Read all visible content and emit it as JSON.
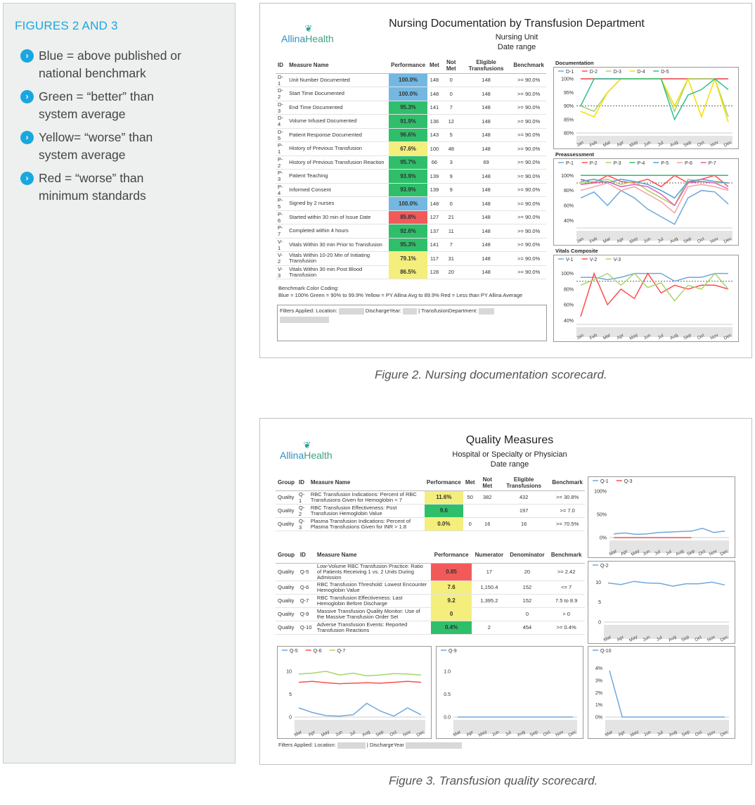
{
  "sidebar": {
    "title": "FIGURES 2 AND 3",
    "items": [
      {
        "line1": "Blue = above published or",
        "line2": "national benchmark"
      },
      {
        "line1": "Green = “better” than",
        "line2": "system average"
      },
      {
        "line1": "Yellow= “worse” than",
        "line2": "system average"
      },
      {
        "line1": "Red = “worse” than",
        "line2": "minimum standards"
      }
    ]
  },
  "colors": {
    "blue": "#74b8e2",
    "green": "#2fbf6b",
    "yellow": "#f4ee7c",
    "red": "#f25a5a",
    "accent": "#1aa7df"
  },
  "logo": {
    "name_a": "Allina",
    "name_b": "Health"
  },
  "figure2": {
    "title": "Nursing Documentation by Transfusion Department",
    "subtitle1": "Nursing Unit",
    "subtitle2": "Date range",
    "caption": "Figure 2. Nursing documentation scorecard.",
    "headers": [
      "ID",
      "Measure Name",
      "Performance",
      "Met",
      "Not Met",
      "Eligible Transfusions",
      "Benchmark"
    ],
    "rows": [
      {
        "id": "D-1",
        "name": "Unit Number Documented",
        "perf": "100.0%",
        "color": "blue",
        "met": "148",
        "notmet": "0",
        "elig": "148",
        "bench": ">= 90.0%"
      },
      {
        "id": "D-2",
        "name": "Start Time Documented",
        "perf": "100.0%",
        "color": "blue",
        "met": "148",
        "notmet": "0",
        "elig": "148",
        "bench": ">= 90.0%"
      },
      {
        "id": "D-3",
        "name": "End Time Documented",
        "perf": "95.3%",
        "color": "green",
        "met": "141",
        "notmet": "7",
        "elig": "148",
        "bench": ">= 90.0%"
      },
      {
        "id": "D-4",
        "name": "Volume Infused Documented",
        "perf": "91.9%",
        "color": "green",
        "met": "136",
        "notmet": "12",
        "elig": "148",
        "bench": ">= 90.0%"
      },
      {
        "id": "D-5",
        "name": "Patient Response Documented",
        "perf": "96.6%",
        "color": "green",
        "met": "143",
        "notmet": "5",
        "elig": "148",
        "bench": ">= 90.0%"
      },
      {
        "id": "P-1",
        "name": "History of Previous Transfusion",
        "perf": "67.6%",
        "color": "yellow",
        "met": "100",
        "notmet": "48",
        "elig": "148",
        "bench": ">= 90.0%"
      },
      {
        "id": "P-2",
        "name": "History of Previous Transfusion Reaction",
        "perf": "95.7%",
        "color": "green",
        "met": "66",
        "notmet": "3",
        "elig": "69",
        "bench": ">= 90.0%"
      },
      {
        "id": "P-3",
        "name": "Patient Teaching",
        "perf": "93.9%",
        "color": "green",
        "met": "139",
        "notmet": "9",
        "elig": "148",
        "bench": ">= 90.0%"
      },
      {
        "id": "P-4",
        "name": "Informed Consent",
        "perf": "93.9%",
        "color": "green",
        "met": "139",
        "notmet": "9",
        "elig": "148",
        "bench": ">= 90.0%"
      },
      {
        "id": "P-5",
        "name": "Signed by 2 nurses",
        "perf": "100.0%",
        "color": "blue",
        "met": "148",
        "notmet": "0",
        "elig": "148",
        "bench": ">= 90.0%"
      },
      {
        "id": "P-6",
        "name": "Started within 30 min of Issue Date",
        "perf": "85.8%",
        "color": "red",
        "met": "127",
        "notmet": "21",
        "elig": "148",
        "bench": ">= 90.0%"
      },
      {
        "id": "P-7",
        "name": "Completed within 4 hours",
        "perf": "92.6%",
        "color": "green",
        "met": "137",
        "notmet": "11",
        "elig": "148",
        "bench": ">= 90.0%"
      },
      {
        "id": "V-1",
        "name": "Vitals Within 30 min Prior to Transfusion",
        "perf": "95.3%",
        "color": "green",
        "met": "141",
        "notmet": "7",
        "elig": "148",
        "bench": ">= 90.0%"
      },
      {
        "id": "V-2",
        "name": "Vitals Within 10-20 Min of Initiating Transfusion",
        "perf": "79.1%",
        "color": "yellow",
        "met": "117",
        "notmet": "31",
        "elig": "148",
        "bench": ">= 90.0%"
      },
      {
        "id": "V-3",
        "name": "Vitals Within 30 min Post Blood Transfusion",
        "perf": "86.5%",
        "color": "yellow",
        "met": "128",
        "notmet": "20",
        "elig": "148",
        "bench": ">= 90.0%"
      }
    ],
    "legend_line1": "Benchmark Color Coding:",
    "legend_line2": "Blue = 100%   Green = 90% to 99.9%   Yellow = PY Allina Avg to 89.9%   Red = Less than PY Allina Average",
    "filters": {
      "location": "Filters Applied: Location:",
      "year": "DischargeYear:",
      "dept": "| TransfusionDepartment:"
    }
  },
  "figure3": {
    "title": "Quality Measures",
    "subtitle1": "Hospital or Specialty or Physician",
    "subtitle2": "Date range",
    "caption": "Figure 3. Transfusion quality scorecard.",
    "table1": {
      "headers": [
        "Group",
        "ID",
        "Measure Name",
        "Performance",
        "Met",
        "Not Met",
        "Eligible Transfusions",
        "Benchmark"
      ],
      "rows": [
        {
          "group": "Quality",
          "id": "Q-1",
          "name": "RBC Transfusion Indications: Percent of RBC Transfusions Given for Hemoglobin < 7",
          "perf": "11.6%",
          "color": "yellow",
          "met": "50",
          "notmet": "382",
          "elig": "432",
          "bench": ">= 30.8%"
        },
        {
          "group": "Quality",
          "id": "Q-2",
          "name": "RBC Transfusion Effectiveness: Post Transfusion Hemoglobin Value",
          "perf": "9.6",
          "color": "green",
          "met": "",
          "notmet": "",
          "elig": "197",
          "bench": ">= 7.0"
        },
        {
          "group": "Quality",
          "id": "Q-3",
          "name": "Plasma Transfusion Indications: Percent of Plasma Transfusions Given for INR > 1.8",
          "perf": "0.0%",
          "color": "yellow",
          "met": "0",
          "notmet": "16",
          "elig": "16",
          "bench": ">= 70.5%"
        }
      ]
    },
    "table2": {
      "headers": [
        "Group",
        "ID",
        "Measure Name",
        "Performance",
        "Numerator",
        "Denominator",
        "Benchmark"
      ],
      "rows": [
        {
          "group": "Quality",
          "id": "Q-5",
          "name": "Low-Volume RBC Transfusion Practice: Ratio of Patients Receiving 1 vs. 2 Units During Admission",
          "perf": "0.85",
          "color": "red",
          "num": "17",
          "den": "20",
          "bench": ">= 2.42"
        },
        {
          "group": "Quality",
          "id": "Q-6",
          "name": "RBC Transfusion Threshold: Lowest Encounter Hemoglobin Value",
          "perf": "7.6",
          "color": "yellow",
          "num": "1,150.4",
          "den": "152",
          "bench": "<= 7"
        },
        {
          "group": "Quality",
          "id": "Q-7",
          "name": "RBC Transfusion Effectiveness: Last Hemoglobin Before Discharge",
          "perf": "9.2",
          "color": "yellow",
          "num": "1,395.2",
          "den": "152",
          "bench": "7.5 to 8.9"
        },
        {
          "group": "Quality",
          "id": "Q-9",
          "name": "Massive Transfusion Quality Monitor: Use of the Massive Transfusion Order Set",
          "perf": "0",
          "color": "yellow",
          "num": "",
          "den": "0",
          "bench": "> 0"
        },
        {
          "group": "Quality",
          "id": "Q-10",
          "name": "Adverse Transfusion Events: Reported Transfusion Reactions",
          "perf": "0.4%",
          "color": "green",
          "num": "2",
          "den": "454",
          "bench": ">= 0.4%"
        }
      ]
    },
    "filters": {
      "location": "Filters Applied: Location:",
      "year": "| DischargeYear"
    }
  },
  "chart_data": [
    {
      "type": "line",
      "title": "Documentation",
      "x": [
        "Jan",
        "Feb",
        "Mar",
        "Apr",
        "May",
        "Jun",
        "Jul",
        "Aug",
        "Sep",
        "Oct",
        "Nov",
        "Dec"
      ],
      "yticks": [
        "80%",
        "85%",
        "90%",
        "95%",
        "100%"
      ],
      "ylim": [
        80,
        100
      ],
      "benchmark": 90,
      "series": [
        {
          "name": "D-1",
          "color": "#6fa8dc",
          "values": [
            100,
            100,
            100,
            100,
            100,
            100,
            100,
            100,
            100,
            100,
            100,
            100
          ]
        },
        {
          "name": "D-2",
          "color": "#ff4d4d",
          "values": [
            100,
            100,
            100,
            100,
            100,
            100,
            100,
            100,
            100,
            100,
            100,
            100
          ]
        },
        {
          "name": "D-3",
          "color": "#a9d46a",
          "values": [
            90,
            88,
            95,
            100,
            100,
            100,
            100,
            88,
            100,
            100,
            100,
            86
          ]
        },
        {
          "name": "D-4",
          "color": "#f2e000",
          "values": [
            88,
            86,
            95,
            100,
            100,
            100,
            100,
            90,
            100,
            86,
            100,
            84
          ]
        },
        {
          "name": "D-5",
          "color": "#2fbf8f",
          "values": [
            90,
            100,
            100,
            100,
            100,
            100,
            100,
            85,
            94,
            96,
            100,
            96
          ]
        }
      ]
    },
    {
      "type": "line",
      "title": "Preassessment",
      "x": [
        "Jan",
        "Feb",
        "Mar",
        "Apr",
        "May",
        "Jun",
        "Jul",
        "Aug",
        "Sep",
        "Oct",
        "Nov",
        "Dec"
      ],
      "yticks": [
        "40%",
        "60%",
        "80%",
        "100%"
      ],
      "ylim": [
        30,
        105
      ],
      "benchmark": 90,
      "series": [
        {
          "name": "P-1",
          "color": "#6fa8dc",
          "values": [
            70,
            78,
            60,
            80,
            70,
            55,
            45,
            35,
            70,
            80,
            78,
            62
          ]
        },
        {
          "name": "P-2",
          "color": "#ff4d4d",
          "values": [
            95,
            90,
            100,
            92,
            90,
            95,
            85,
            100,
            90,
            95,
            100,
            85
          ]
        },
        {
          "name": "P-3",
          "color": "#a9d46a",
          "values": [
            90,
            92,
            95,
            88,
            92,
            80,
            70,
            60,
            95,
            92,
            90,
            90
          ]
        },
        {
          "name": "P-4",
          "color": "#2fbf6b",
          "values": [
            100,
            100,
            100,
            100,
            100,
            100,
            100,
            100,
            100,
            100,
            100,
            100
          ]
        },
        {
          "name": "P-5",
          "color": "#4fa0d8",
          "values": [
            92,
            95,
            90,
            95,
            92,
            88,
            80,
            70,
            92,
            95,
            92,
            90
          ]
        },
        {
          "name": "P-6",
          "color": "#f2a2a2",
          "values": [
            80,
            85,
            90,
            80,
            85,
            75,
            65,
            50,
            85,
            88,
            85,
            80
          ]
        },
        {
          "name": "P-7",
          "color": "#e060b0",
          "values": [
            88,
            90,
            92,
            85,
            88,
            85,
            75,
            60,
            90,
            92,
            90,
            82
          ]
        }
      ]
    },
    {
      "type": "line",
      "title": "Vitals Composite",
      "x": [
        "Jan",
        "Feb",
        "Mar",
        "Apr",
        "May",
        "Jun",
        "Jul",
        "Aug",
        "Sep",
        "Oct",
        "Nov",
        "Dec"
      ],
      "yticks": [
        "40%",
        "60%",
        "80%",
        "100%"
      ],
      "ylim": [
        35,
        105
      ],
      "benchmark": 90,
      "series": [
        {
          "name": "V-1",
          "color": "#6fa8dc",
          "values": [
            95,
            95,
            92,
            95,
            100,
            100,
            100,
            90,
            95,
            95,
            100,
            100
          ]
        },
        {
          "name": "V-2",
          "color": "#ff4d4d",
          "values": [
            45,
            100,
            60,
            80,
            68,
            100,
            75,
            85,
            80,
            85,
            85,
            80
          ]
        },
        {
          "name": "V-3",
          "color": "#a9d46a",
          "values": [
            85,
            92,
            100,
            85,
            100,
            82,
            88,
            65,
            85,
            80,
            100,
            80
          ]
        }
      ]
    },
    {
      "type": "line",
      "title": "",
      "x": [
        "Mar",
        "Apr",
        "May",
        "Jun",
        "Jul",
        "Jul",
        "Aug",
        "Sep",
        "Oct",
        "Nov",
        "Dec"
      ],
      "yticks": [
        "0%",
        "50%",
        "100%"
      ],
      "ylim": [
        0,
        100
      ],
      "series": [
        {
          "name": "Q-1",
          "color": "#6fa8dc",
          "values": [
            8,
            10,
            7,
            8,
            11,
            12,
            13,
            14,
            20,
            11,
            14
          ]
        },
        {
          "name": "Q-3",
          "color": "#ff4d4d",
          "values": [
            0,
            0,
            0,
            0,
            0,
            0,
            0,
            0,
            null,
            null,
            null
          ]
        }
      ]
    },
    {
      "type": "line",
      "title": "",
      "x": [
        "Mar",
        "Apr",
        "May",
        "Jun",
        "Jul",
        "Aug",
        "Sep",
        "Oct",
        "Nov",
        "Dec"
      ],
      "yticks": [
        "0",
        "5",
        "10"
      ],
      "ylim": [
        0,
        12
      ],
      "series": [
        {
          "name": "Q-2",
          "color": "#6fa8dc",
          "values": [
            9.8,
            9.4,
            10.2,
            9.8,
            9.7,
            9.0,
            9.6,
            9.6,
            10.0,
            9.3
          ]
        }
      ]
    },
    {
      "type": "line",
      "title": "",
      "x": [
        "Mar",
        "Apr",
        "May",
        "Jun",
        "Jul",
        "Aug",
        "Sep",
        "Oct",
        "Nov",
        "Dec"
      ],
      "yticks": [
        "0",
        "5",
        "10"
      ],
      "ylim": [
        0,
        12
      ],
      "series": [
        {
          "name": "Q-5",
          "color": "#6fa8dc",
          "values": [
            2.0,
            1.0,
            0.3,
            0.2,
            0.5,
            3.0,
            1.3,
            0.2,
            2.0,
            0.5
          ]
        },
        {
          "name": "Q-6",
          "color": "#ff4d4d",
          "values": [
            7.6,
            7.8,
            7.5,
            7.3,
            7.4,
            7.5,
            7.4,
            7.6,
            7.8,
            7.6
          ]
        },
        {
          "name": "Q-7",
          "color": "#a9d46a",
          "values": [
            9.4,
            9.6,
            10.0,
            9.2,
            9.6,
            9.0,
            9.2,
            9.5,
            9.4,
            9.2
          ]
        }
      ]
    },
    {
      "type": "line",
      "title": "",
      "x": [
        "Mar",
        "Apr",
        "May",
        "Jun",
        "Jul",
        "Aug",
        "Sep",
        "Oct",
        "Nov",
        "Dec"
      ],
      "yticks": [
        "0.0",
        "0.5",
        "1.0"
      ],
      "ylim": [
        0,
        1.2
      ],
      "series": [
        {
          "name": "Q-9",
          "color": "#6fa8dc",
          "values": [
            0,
            0,
            0,
            0,
            0,
            0,
            0,
            0,
            0,
            0
          ]
        }
      ]
    },
    {
      "type": "line",
      "title": "",
      "x": [
        "Mar",
        "Apr",
        "May",
        "Jun",
        "Jul",
        "Aug",
        "Sep",
        "Oct",
        "Nov",
        "Dec"
      ],
      "yticks": [
        "0%",
        "1%",
        "2%",
        "3%",
        "4%"
      ],
      "ylim": [
        0,
        4.5
      ],
      "series": [
        {
          "name": "Q-10",
          "color": "#6fa8dc",
          "values": [
            3.8,
            0,
            0,
            0,
            0,
            0,
            0,
            0,
            0,
            0
          ]
        }
      ]
    }
  ]
}
